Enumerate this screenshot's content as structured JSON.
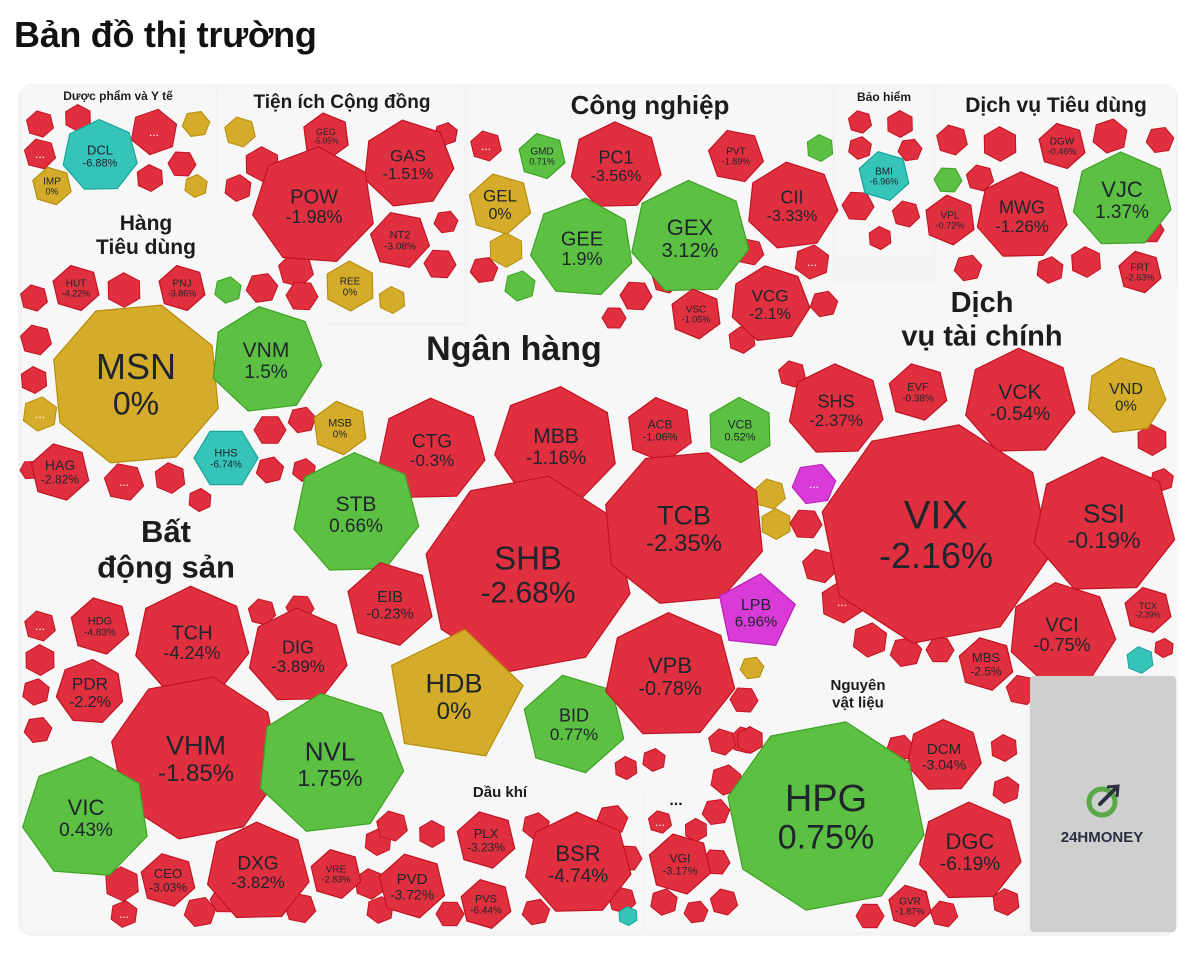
{
  "page": {
    "title": "Bản đồ thị trường"
  },
  "colors": {
    "down": "#e0303f",
    "up": "#5cc043",
    "flat": "#d4ac2a",
    "floor": "#36c4b8",
    "ceiling": "#d93bd8",
    "logo_bg": "#cfcfcf",
    "logo_text": "#2a3040",
    "logo_accent": "#5aa84a"
  },
  "logo": {
    "text": "24HMONEY",
    "icon": "24hmoney-logo-icon"
  },
  "chart_data": {
    "type": "treemap",
    "title": "",
    "more_label": "...",
    "sectors": [
      {
        "name": "Dược phẩm và Y tế",
        "stocks": [
          {
            "ticker": "DCL",
            "change": "-6.88%",
            "status": "floor"
          },
          {
            "ticker": "IMP",
            "change": "0%",
            "status": "flat"
          }
        ]
      },
      {
        "name": "Tiện ích Cộng đồng",
        "stocks": [
          {
            "ticker": "GEG",
            "change": "-5.05%",
            "status": "down"
          },
          {
            "ticker": "GAS",
            "change": "-1.51%",
            "status": "down"
          },
          {
            "ticker": "POW",
            "change": "-1.98%",
            "status": "down"
          },
          {
            "ticker": "NT2",
            "change": "-3.08%",
            "status": "down"
          },
          {
            "ticker": "REE",
            "change": "0%",
            "status": "flat"
          }
        ]
      },
      {
        "name": "Công nghiệp",
        "stocks": [
          {
            "ticker": "GMD",
            "change": "0.71%",
            "status": "up"
          },
          {
            "ticker": "PC1",
            "change": "-3.56%",
            "status": "down"
          },
          {
            "ticker": "PVT",
            "change": "-1.89%",
            "status": "down"
          },
          {
            "ticker": "CII",
            "change": "-3.33%",
            "status": "down"
          },
          {
            "ticker": "GEL",
            "change": "0%",
            "status": "flat"
          },
          {
            "ticker": "GEE",
            "change": "1.9%",
            "status": "up"
          },
          {
            "ticker": "GEX",
            "change": "3.12%",
            "status": "up"
          },
          {
            "ticker": "VSC",
            "change": "-1.05%",
            "status": "down"
          },
          {
            "ticker": "VCG",
            "change": "-2.1%",
            "status": "down"
          }
        ]
      },
      {
        "name": "Bảo hiểm",
        "stocks": [
          {
            "ticker": "BMI",
            "change": "-6.96%",
            "status": "floor"
          }
        ]
      },
      {
        "name": "Dịch vụ Tiêu dùng",
        "stocks": [
          {
            "ticker": "DGW",
            "change": "-0.46%",
            "status": "down"
          },
          {
            "ticker": "VJC",
            "change": "1.37%",
            "status": "up"
          },
          {
            "ticker": "VPL",
            "change": "-0.72%",
            "status": "down"
          },
          {
            "ticker": "MWG",
            "change": "-1.26%",
            "status": "down"
          },
          {
            "ticker": "FRT",
            "change": "-2.63%",
            "status": "down"
          }
        ]
      },
      {
        "name": "Hàng Tiêu dùng",
        "stocks": [
          {
            "ticker": "HUT",
            "change": "-4.22%",
            "status": "down"
          },
          {
            "ticker": "PNJ",
            "change": "-3.86%",
            "status": "down"
          },
          {
            "ticker": "MSN",
            "change": "0%",
            "status": "flat"
          },
          {
            "ticker": "VNM",
            "change": "1.5%",
            "status": "up"
          },
          {
            "ticker": "HHS",
            "change": "-6.74%",
            "status": "floor"
          },
          {
            "ticker": "HAG",
            "change": "-2.82%",
            "status": "down"
          }
        ]
      },
      {
        "name": "Ngân hàng",
        "stocks": [
          {
            "ticker": "MSB",
            "change": "0%",
            "status": "flat"
          },
          {
            "ticker": "CTG",
            "change": "-0.3%",
            "status": "down"
          },
          {
            "ticker": "MBB",
            "change": "-1.16%",
            "status": "down"
          },
          {
            "ticker": "ACB",
            "change": "-1.06%",
            "status": "down"
          },
          {
            "ticker": "VCB",
            "change": "0.52%",
            "status": "up"
          },
          {
            "ticker": "STB",
            "change": "0.66%",
            "status": "up"
          },
          {
            "ticker": "SHB",
            "change": "-2.68%",
            "status": "down"
          },
          {
            "ticker": "TCB",
            "change": "-2.35%",
            "status": "down"
          },
          {
            "ticker": "EIB",
            "change": "-0.23%",
            "status": "down"
          },
          {
            "ticker": "LPB",
            "change": "6.96%",
            "status": "ceiling"
          },
          {
            "ticker": "HDB",
            "change": "0%",
            "status": "flat"
          },
          {
            "ticker": "BID",
            "change": "0.77%",
            "status": "up"
          },
          {
            "ticker": "VPB",
            "change": "-0.78%",
            "status": "down"
          }
        ]
      },
      {
        "name": "Dịch vụ tài chính",
        "stocks": [
          {
            "ticker": "SHS",
            "change": "-2.37%",
            "status": "down"
          },
          {
            "ticker": "EVF",
            "change": "-0.38%",
            "status": "down"
          },
          {
            "ticker": "VCK",
            "change": "-0.54%",
            "status": "down"
          },
          {
            "ticker": "VND",
            "change": "0%",
            "status": "flat"
          },
          {
            "ticker": "VIX",
            "change": "-2.16%",
            "status": "down"
          },
          {
            "ticker": "SSI",
            "change": "-0.19%",
            "status": "down"
          },
          {
            "ticker": "TCX",
            "change": "-2.39%",
            "status": "down"
          },
          {
            "ticker": "VCI",
            "change": "-0.75%",
            "status": "down"
          },
          {
            "ticker": "MBS",
            "change": "-2.5%",
            "status": "down"
          }
        ]
      },
      {
        "name": "Bất động sản",
        "stocks": [
          {
            "ticker": "HDG",
            "change": "-4.83%",
            "status": "down"
          },
          {
            "ticker": "TCH",
            "change": "-4.24%",
            "status": "down"
          },
          {
            "ticker": "DIG",
            "change": "-3.89%",
            "status": "down"
          },
          {
            "ticker": "PDR",
            "change": "-2.2%",
            "status": "down"
          },
          {
            "ticker": "VHM",
            "change": "-1.85%",
            "status": "down"
          },
          {
            "ticker": "NVL",
            "change": "1.75%",
            "status": "up"
          },
          {
            "ticker": "VIC",
            "change": "0.43%",
            "status": "up"
          },
          {
            "ticker": "CEO",
            "change": "-3.03%",
            "status": "down"
          },
          {
            "ticker": "DXG",
            "change": "-3.82%",
            "status": "down"
          },
          {
            "ticker": "VRE",
            "change": "-2.83%",
            "status": "down"
          }
        ]
      },
      {
        "name": "Dầu khí",
        "stocks": [
          {
            "ticker": "PLX",
            "change": "-3.23%",
            "status": "down"
          },
          {
            "ticker": "BSR",
            "change": "-4.74%",
            "status": "down"
          },
          {
            "ticker": "PVD",
            "change": "-3.72%",
            "status": "down"
          },
          {
            "ticker": "PVS",
            "change": "-6.44%",
            "status": "down"
          }
        ]
      },
      {
        "name": "...",
        "stocks": [
          {
            "ticker": "VGI",
            "change": "-3.17%",
            "status": "down"
          }
        ]
      },
      {
        "name": "Nguyên vật liệu",
        "stocks": [
          {
            "ticker": "DCM",
            "change": "-3.04%",
            "status": "down"
          },
          {
            "ticker": "HPG",
            "change": "0.75%",
            "status": "up"
          },
          {
            "ticker": "DGC",
            "change": "-6.19%",
            "status": "down"
          },
          {
            "ticker": "GVR",
            "change": "-1.87%",
            "status": "down"
          }
        ]
      }
    ]
  }
}
